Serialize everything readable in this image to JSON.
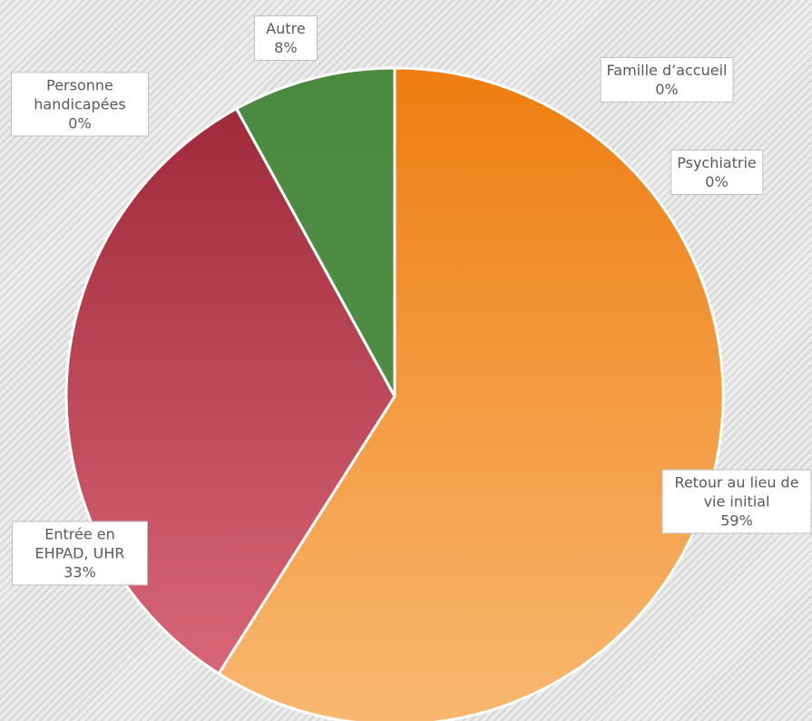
{
  "chart_data": {
    "type": "pie",
    "categories": [
      "Retour au lieu de vie initial",
      "Entrée en EHPAD, UHR",
      "Personne handicapées",
      "Autre",
      "Famille d’accueil",
      "Psychiatrie"
    ],
    "values": [
      59,
      33,
      0,
      8,
      0,
      0
    ],
    "value_labels": [
      "59%",
      "33%",
      "0%",
      "8%",
      "0%",
      "0%"
    ],
    "colors": [
      [
        "#ee7d10",
        "#f9b870"
      ],
      [
        "#9c2636",
        "#de6b7b"
      ],
      [
        "#9c2636",
        "#de6b7b"
      ],
      [
        "#4a8a3f",
        "#55904a"
      ],
      [
        "#ee7d10",
        "#f9b870"
      ],
      [
        "#ee7d10",
        "#f9b870"
      ]
    ]
  }
}
